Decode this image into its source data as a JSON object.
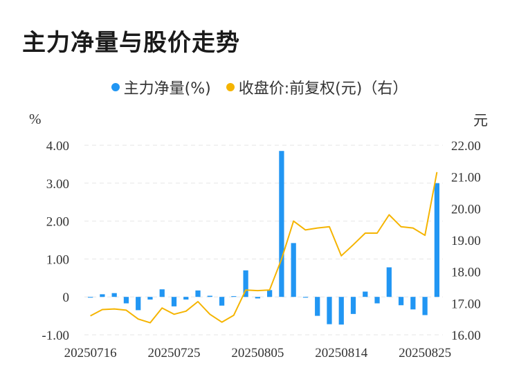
{
  "title": "主力净量与股价走势",
  "units": {
    "left": "%",
    "right": "元"
  },
  "colors": {
    "bar": "#2196f3",
    "line": "#f5b400",
    "grid": "#e5e5e5"
  },
  "chart_data": {
    "type": "bar",
    "title": "主力净量与股价走势",
    "legend": [
      "主力净量(%)",
      "收盘价:前复权(元)（右）"
    ],
    "legend_position": "top-center",
    "x_tick_labels": [
      "20250716",
      "20250725",
      "20250805",
      "20250814",
      "20250825"
    ],
    "x_tick_indices": [
      0,
      7,
      14,
      21,
      28
    ],
    "y_left": {
      "label": "%",
      "ylim": [
        -1.0,
        4.0
      ],
      "ticks": [
        "4.00",
        "3.00",
        "2.00",
        "1.00",
        "0",
        "-1.00"
      ],
      "tick_values": [
        4,
        3,
        2,
        1,
        0,
        -1
      ]
    },
    "y_right": {
      "label": "元",
      "ylim": [
        16.0,
        22.0
      ],
      "ticks": [
        "22.00",
        "21.00",
        "20.00",
        "19.00",
        "18.00",
        "17.00",
        "16.00"
      ],
      "tick_values": [
        22,
        21,
        20,
        19,
        18,
        17,
        16
      ]
    },
    "grid": true,
    "series": [
      {
        "name": "主力净量(%)",
        "type": "bar",
        "axis": "left",
        "values": [
          -0.02,
          0.07,
          0.1,
          -0.17,
          -0.35,
          -0.07,
          0.2,
          -0.25,
          -0.07,
          0.17,
          0.03,
          -0.23,
          0.02,
          0.7,
          -0.04,
          0.18,
          3.85,
          1.42,
          -0.02,
          -0.5,
          -0.72,
          -0.73,
          -0.45,
          0.14,
          -0.17,
          0.78,
          -0.22,
          -0.33,
          -0.48,
          3.0
        ]
      },
      {
        "name": "收盘价:前复权(元)（右）",
        "type": "line",
        "axis": "right",
        "values": [
          16.6,
          16.8,
          16.82,
          16.78,
          16.5,
          16.38,
          16.85,
          16.65,
          16.75,
          17.05,
          16.65,
          16.4,
          16.62,
          17.42,
          17.4,
          17.42,
          18.4,
          19.6,
          19.32,
          19.38,
          19.42,
          18.5,
          18.85,
          19.22,
          19.22,
          19.8,
          19.42,
          19.38,
          19.15,
          21.15
        ]
      }
    ]
  }
}
